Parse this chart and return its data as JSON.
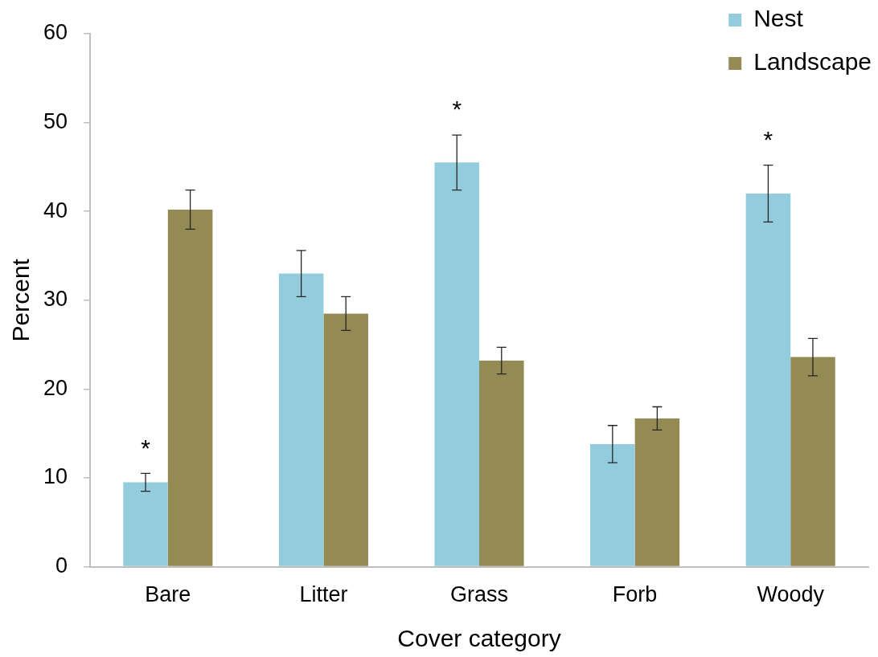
{
  "chart_data": {
    "type": "bar",
    "xlabel": "Cover category",
    "ylabel": "Percent",
    "categories": [
      "Bare",
      "Litter",
      "Grass",
      "Forb",
      "Woody"
    ],
    "series": [
      {
        "name": "Nest",
        "color": "#93cddd",
        "values": [
          9.5,
          33.0,
          45.5,
          13.8,
          42.0
        ],
        "errors": [
          1.0,
          2.6,
          3.1,
          2.1,
          3.2
        ]
      },
      {
        "name": "Landscape",
        "color": "#948a54",
        "values": [
          40.2,
          28.5,
          23.2,
          16.7,
          23.6
        ],
        "errors": [
          2.2,
          1.9,
          1.5,
          1.3,
          2.1
        ]
      }
    ],
    "ylim": [
      0,
      60
    ],
    "yticks": [
      0,
      10,
      20,
      30,
      40,
      50,
      60
    ],
    "legend": "top right",
    "annotations": [
      {
        "text": "*",
        "x": "Bare",
        "y": 9.5
      },
      {
        "text": "*",
        "x": "Grass",
        "y": 45.5
      },
      {
        "text": "*",
        "x": "Woody",
        "y": 42.0
      }
    ]
  }
}
